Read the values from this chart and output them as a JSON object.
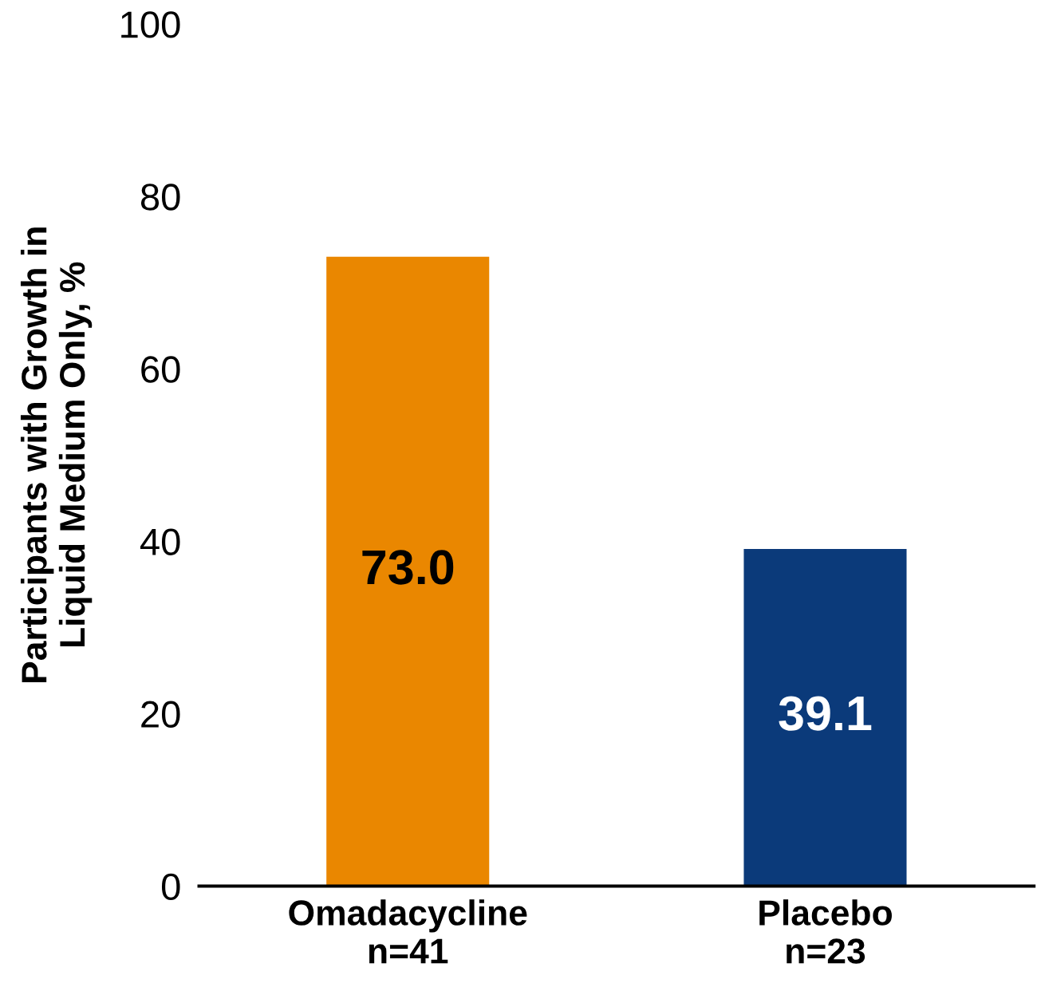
{
  "chart_data": {
    "type": "bar",
    "ylabel": "Participants with Growth in\nLiquid Medium Only, %",
    "categories": [
      "Omadacycline\nn=41",
      "Placebo\nn=23"
    ],
    "values": [
      73.0,
      39.1
    ],
    "value_labels": [
      "73.0",
      "39.1"
    ],
    "colors": [
      "#ea8700",
      "#0b3a7a"
    ],
    "ylim": [
      0,
      100
    ],
    "yticks": [
      0,
      20,
      40,
      60,
      80,
      100
    ],
    "grid": false,
    "legend": false
  }
}
